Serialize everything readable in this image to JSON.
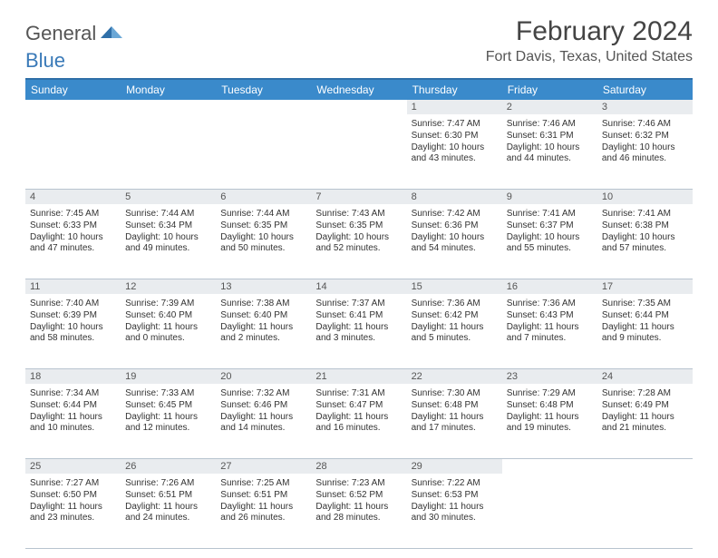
{
  "logo": {
    "text_a": "General",
    "text_b": "Blue"
  },
  "title": "February 2024",
  "location": "Fort Davis, Texas, United States",
  "colors": {
    "header_bar": "#3a8acb",
    "top_border": "#2f6fa8",
    "daynum_bg": "#e9ecef",
    "week_border": "#b8c4cf",
    "text": "#333333"
  },
  "day_names": [
    "Sunday",
    "Monday",
    "Tuesday",
    "Wednesday",
    "Thursday",
    "Friday",
    "Saturday"
  ],
  "weeks": [
    [
      null,
      null,
      null,
      null,
      {
        "n": "1",
        "sr": "7:47 AM",
        "ss": "6:30 PM",
        "dl": "10 hours and 43 minutes."
      },
      {
        "n": "2",
        "sr": "7:46 AM",
        "ss": "6:31 PM",
        "dl": "10 hours and 44 minutes."
      },
      {
        "n": "3",
        "sr": "7:46 AM",
        "ss": "6:32 PM",
        "dl": "10 hours and 46 minutes."
      }
    ],
    [
      {
        "n": "4",
        "sr": "7:45 AM",
        "ss": "6:33 PM",
        "dl": "10 hours and 47 minutes."
      },
      {
        "n": "5",
        "sr": "7:44 AM",
        "ss": "6:34 PM",
        "dl": "10 hours and 49 minutes."
      },
      {
        "n": "6",
        "sr": "7:44 AM",
        "ss": "6:35 PM",
        "dl": "10 hours and 50 minutes."
      },
      {
        "n": "7",
        "sr": "7:43 AM",
        "ss": "6:35 PM",
        "dl": "10 hours and 52 minutes."
      },
      {
        "n": "8",
        "sr": "7:42 AM",
        "ss": "6:36 PM",
        "dl": "10 hours and 54 minutes."
      },
      {
        "n": "9",
        "sr": "7:41 AM",
        "ss": "6:37 PM",
        "dl": "10 hours and 55 minutes."
      },
      {
        "n": "10",
        "sr": "7:41 AM",
        "ss": "6:38 PM",
        "dl": "10 hours and 57 minutes."
      }
    ],
    [
      {
        "n": "11",
        "sr": "7:40 AM",
        "ss": "6:39 PM",
        "dl": "10 hours and 58 minutes."
      },
      {
        "n": "12",
        "sr": "7:39 AM",
        "ss": "6:40 PM",
        "dl": "11 hours and 0 minutes."
      },
      {
        "n": "13",
        "sr": "7:38 AM",
        "ss": "6:40 PM",
        "dl": "11 hours and 2 minutes."
      },
      {
        "n": "14",
        "sr": "7:37 AM",
        "ss": "6:41 PM",
        "dl": "11 hours and 3 minutes."
      },
      {
        "n": "15",
        "sr": "7:36 AM",
        "ss": "6:42 PM",
        "dl": "11 hours and 5 minutes."
      },
      {
        "n": "16",
        "sr": "7:36 AM",
        "ss": "6:43 PM",
        "dl": "11 hours and 7 minutes."
      },
      {
        "n": "17",
        "sr": "7:35 AM",
        "ss": "6:44 PM",
        "dl": "11 hours and 9 minutes."
      }
    ],
    [
      {
        "n": "18",
        "sr": "7:34 AM",
        "ss": "6:44 PM",
        "dl": "11 hours and 10 minutes."
      },
      {
        "n": "19",
        "sr": "7:33 AM",
        "ss": "6:45 PM",
        "dl": "11 hours and 12 minutes."
      },
      {
        "n": "20",
        "sr": "7:32 AM",
        "ss": "6:46 PM",
        "dl": "11 hours and 14 minutes."
      },
      {
        "n": "21",
        "sr": "7:31 AM",
        "ss": "6:47 PM",
        "dl": "11 hours and 16 minutes."
      },
      {
        "n": "22",
        "sr": "7:30 AM",
        "ss": "6:48 PM",
        "dl": "11 hours and 17 minutes."
      },
      {
        "n": "23",
        "sr": "7:29 AM",
        "ss": "6:48 PM",
        "dl": "11 hours and 19 minutes."
      },
      {
        "n": "24",
        "sr": "7:28 AM",
        "ss": "6:49 PM",
        "dl": "11 hours and 21 minutes."
      }
    ],
    [
      {
        "n": "25",
        "sr": "7:27 AM",
        "ss": "6:50 PM",
        "dl": "11 hours and 23 minutes."
      },
      {
        "n": "26",
        "sr": "7:26 AM",
        "ss": "6:51 PM",
        "dl": "11 hours and 24 minutes."
      },
      {
        "n": "27",
        "sr": "7:25 AM",
        "ss": "6:51 PM",
        "dl": "11 hours and 26 minutes."
      },
      {
        "n": "28",
        "sr": "7:23 AM",
        "ss": "6:52 PM",
        "dl": "11 hours and 28 minutes."
      },
      {
        "n": "29",
        "sr": "7:22 AM",
        "ss": "6:53 PM",
        "dl": "11 hours and 30 minutes."
      },
      null,
      null
    ]
  ],
  "labels": {
    "sunrise": "Sunrise: ",
    "sunset": "Sunset: ",
    "daylight": "Daylight: "
  }
}
